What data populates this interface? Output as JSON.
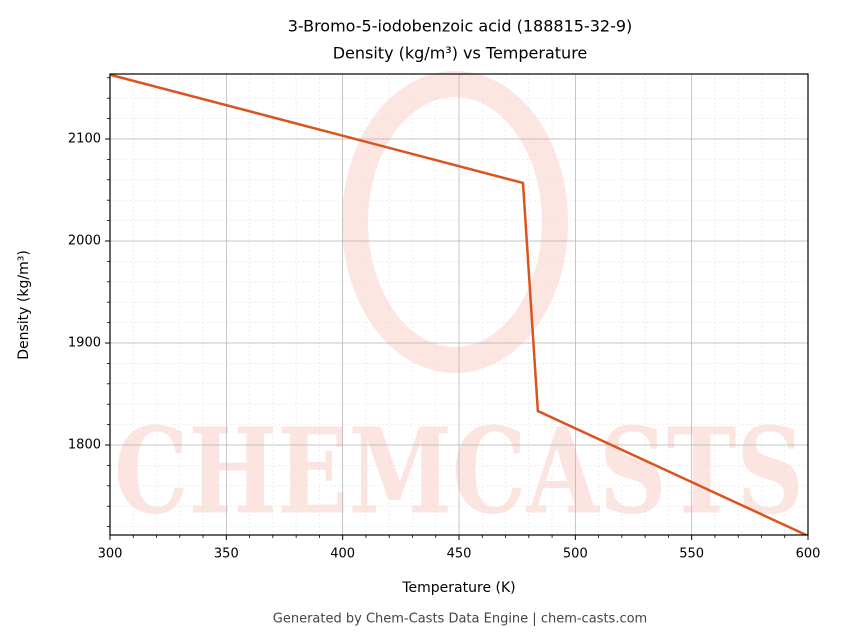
{
  "chart_data": {
    "type": "line",
    "title": "3-Bromo-5-iodobenzoic acid (188815-32-9)",
    "subtitle": "Density (kg/m³) vs Temperature",
    "x_label": "Temperature (K)",
    "y_label": "Density (kg/m³)",
    "footer": "Generated by Chem-Casts Data Engine | chem-casts.com",
    "watermark": "CHEMCASTS",
    "x": [
      300,
      477.5,
      483.9,
      600
    ],
    "series": [
      {
        "name": "Density",
        "color": "#d9541e",
        "values": [
          2163,
          2056.9,
          1833.3,
          1711
        ]
      }
    ],
    "xlim": [
      300,
      600
    ],
    "ylim": [
      1711.8,
      2163.7
    ],
    "xticks": [
      300,
      350,
      400,
      450,
      500,
      550,
      600
    ],
    "yticks": [
      1800,
      1900,
      2000,
      2100
    ],
    "xticks_minor": [
      310,
      320,
      330,
      340,
      360,
      370,
      380,
      390,
      410,
      420,
      430,
      440,
      460,
      470,
      480,
      490,
      510,
      520,
      530,
      540,
      560,
      570,
      580,
      590
    ],
    "yticks_minor": [
      1720,
      1740,
      1760,
      1780,
      1820,
      1840,
      1860,
      1880,
      1920,
      1940,
      1960,
      1980,
      2020,
      2040,
      2060,
      2080,
      2120,
      2140,
      2160
    ],
    "grid": true
  }
}
